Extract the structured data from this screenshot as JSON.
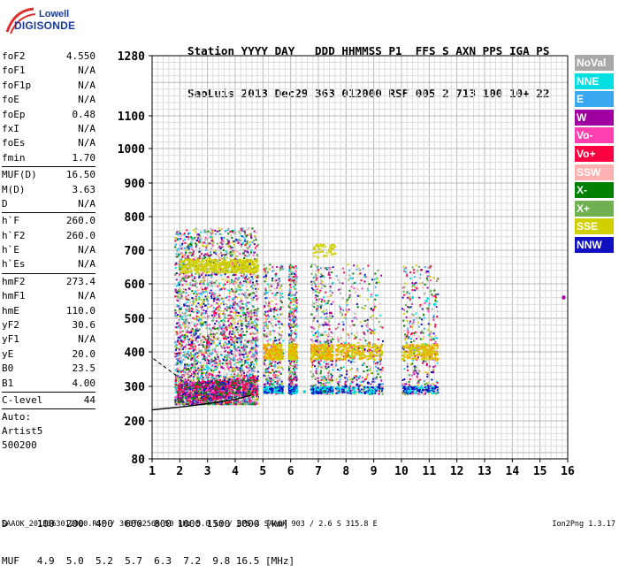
{
  "logo": {
    "line1": "Lowell",
    "line2": "DIGISONDE"
  },
  "header": {
    "row1": "Station YYYY DAY   DDD HHMMSS P1  FFS S AXN PPS IGA PS",
    "row2": "SaoLuis 2013 Dec29 363 012000 RSF 005 2 713 100 10+ 22"
  },
  "params": {
    "group1": [
      {
        "k": "foF2",
        "v": "4.550"
      },
      {
        "k": "foF1",
        "v": "N/A"
      },
      {
        "k": "foF1p",
        "v": "N/A"
      },
      {
        "k": "foE",
        "v": "N/A"
      },
      {
        "k": "foEp",
        "v": "0.48"
      },
      {
        "k": "fxI",
        "v": "N/A"
      },
      {
        "k": "foEs",
        "v": "N/A"
      },
      {
        "k": "fmin",
        "v": "1.70"
      }
    ],
    "group2": [
      {
        "k": "MUF(D)",
        "v": "16.50"
      },
      {
        "k": "M(D)",
        "v": "3.63"
      },
      {
        "k": "D",
        "v": "N/A"
      }
    ],
    "group3": [
      {
        "k": "h`F",
        "v": "260.0"
      },
      {
        "k": "h`F2",
        "v": "260.0"
      },
      {
        "k": "h`E",
        "v": "N/A"
      },
      {
        "k": "h`Es",
        "v": "N/A"
      }
    ],
    "group4": [
      {
        "k": "hmF2",
        "v": "273.4"
      },
      {
        "k": "hmF1",
        "v": "N/A"
      },
      {
        "k": "hmE",
        "v": "110.0"
      },
      {
        "k": "yF2",
        "v": "30.6"
      },
      {
        "k": "yF1",
        "v": "N/A"
      },
      {
        "k": "yE",
        "v": "20.0"
      },
      {
        "k": "B0",
        "v": "23.5"
      },
      {
        "k": "B1",
        "v": "4.00"
      }
    ],
    "clevel": {
      "k": "C-level",
      "v": "44"
    },
    "auto": [
      "Auto:",
      "Artist5",
      "500200"
    ]
  },
  "legend": [
    {
      "label": "NoVal",
      "color": "#a8a8a8"
    },
    {
      "label": "NNE",
      "color": "#00e0e0"
    },
    {
      "label": "E",
      "color": "#3aa8f0"
    },
    {
      "label": "W",
      "color": "#a000a0"
    },
    {
      "label": "Vo-",
      "color": "#ff40b0"
    },
    {
      "label": "Vo+",
      "color": "#ff0040"
    },
    {
      "label": "SSW",
      "color": "#ffb0b0"
    },
    {
      "label": "X-",
      "color": "#008000"
    },
    {
      "label": "X+",
      "color": "#70b050"
    },
    {
      "label": "SSE",
      "color": "#d0d000"
    },
    {
      "label": "NNW",
      "color": "#1010c0"
    }
  ],
  "chart_data": {
    "type": "scatter",
    "x_axis": {
      "label": "",
      "range": [
        1,
        16
      ],
      "ticks": [
        1,
        2,
        3,
        4,
        5,
        6,
        7,
        8,
        9,
        10,
        11,
        12,
        13,
        14,
        15,
        16
      ],
      "unit": "MHz"
    },
    "y_axis": {
      "label": "",
      "range": [
        80,
        1280
      ],
      "scale": "nonlinear",
      "ticks": [
        80,
        200,
        300,
        400,
        500,
        600,
        700,
        800,
        900,
        1000,
        1100,
        1280
      ],
      "unit": "km"
    },
    "grid": true,
    "series": [
      {
        "name": "SSE",
        "points_desc": "virtual height echo clusters",
        "points": [
          [
            2.2,
            650
          ],
          [
            2.8,
            650
          ],
          [
            3.3,
            660
          ],
          [
            4.0,
            660
          ],
          [
            4.5,
            670
          ],
          [
            5.4,
            395
          ],
          [
            6.0,
            395
          ],
          [
            6.9,
            410
          ],
          [
            7.5,
            705
          ],
          [
            8.3,
            420
          ],
          [
            8.8,
            420
          ],
          [
            10.4,
            410
          ],
          [
            10.8,
            410
          ]
        ]
      },
      {
        "name": "Vo+",
        "points": [
          [
            2.0,
            290
          ],
          [
            2.6,
            300
          ],
          [
            3.2,
            310
          ],
          [
            3.8,
            300
          ],
          [
            4.3,
            290
          ],
          [
            2.4,
            420
          ],
          [
            3.0,
            430
          ],
          [
            3.6,
            440
          ],
          [
            4.2,
            450
          ]
        ]
      },
      {
        "name": "X-",
        "points": [
          [
            2.0,
            255
          ],
          [
            2.5,
            265
          ],
          [
            3.0,
            270
          ],
          [
            3.5,
            275
          ],
          [
            4.0,
            280
          ],
          [
            4.5,
            285
          ],
          [
            6.5,
            285
          ],
          [
            7.2,
            285
          ]
        ]
      },
      {
        "name": "NNW",
        "points": [
          [
            8.0,
            300
          ],
          [
            8.4,
            305
          ],
          [
            8.8,
            310
          ],
          [
            9.2,
            305
          ],
          [
            2.6,
            280
          ]
        ]
      },
      {
        "name": "NNE",
        "points": [
          [
            10.4,
            560
          ],
          [
            10.9,
            550
          ],
          [
            11.2,
            540
          ],
          [
            6.5,
            285
          ],
          [
            7.0,
            290
          ]
        ]
      }
    ],
    "traces": [
      {
        "name": "virtual height trace",
        "points": [
          [
            1.0,
            232
          ],
          [
            2.0,
            240
          ],
          [
            3.0,
            250
          ],
          [
            4.0,
            262
          ],
          [
            4.6,
            275
          ]
        ]
      }
    ]
  },
  "dtable": {
    "row1": "D     100  200  400  600  800 1000 1500 3000 [km]",
    "row2": "MUF   4.9  5.0  5.2  5.7  6.3  7.2  9.8 16.5 [MHz]"
  },
  "footer": "SAAOK_2013363012000.RSF / 300fx256h 50 kHz 5.0 km / DPS-4 SAAOK 903 / 2.6 S 315.8 E",
  "version": "Ion2Png 1.3.17"
}
